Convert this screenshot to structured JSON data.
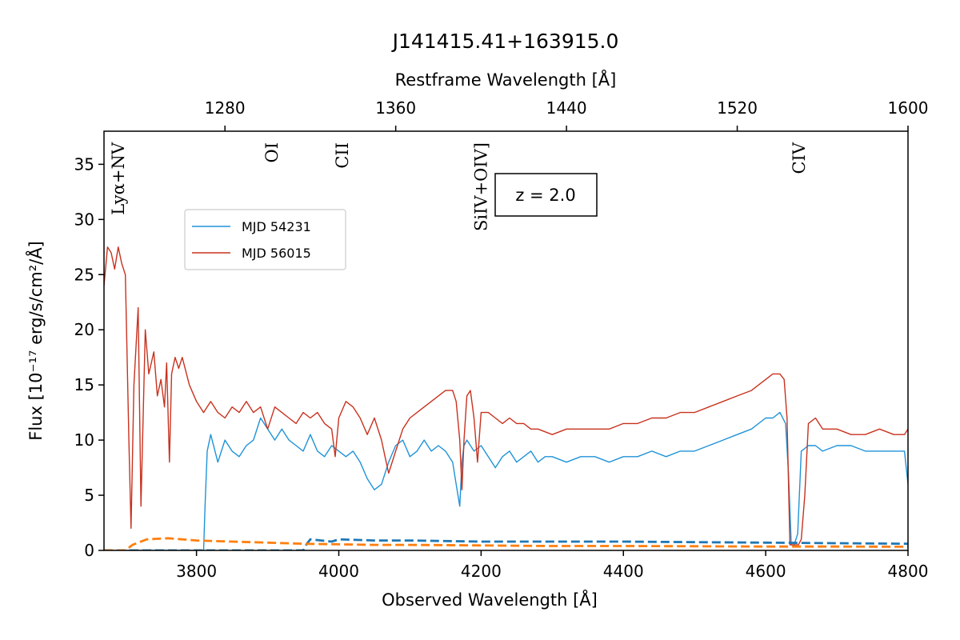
{
  "chart_data": {
    "type": "line",
    "title": "J141415.41+163915.0",
    "xlabel": "Observed Wavelength [Å]",
    "ylabel": "Flux [10⁻¹⁷ erg/s/cm²/Å]",
    "x2label": "Restframe Wavelength [Å]",
    "xlim": [
      3670,
      4800
    ],
    "ylim": [
      0,
      38
    ],
    "redshift": 2.0,
    "redshift_label": "z = 2.0",
    "x_ticks": [
      3800,
      4000,
      4200,
      4400,
      4600,
      4800
    ],
    "x_tick_labels": [
      "3800",
      "4000",
      "4200",
      "4400",
      "4600",
      "4800"
    ],
    "y_ticks": [
      0,
      5,
      10,
      15,
      20,
      25,
      30,
      35
    ],
    "y_tick_labels": [
      "0",
      "5",
      "10",
      "15",
      "20",
      "25",
      "30",
      "35"
    ],
    "x2_ticks": [
      1280,
      1360,
      1440,
      1520,
      1600
    ],
    "x2_tick_labels": [
      "1280",
      "1360",
      "1440",
      "1520",
      "1600"
    ],
    "grid": false,
    "legend_position": "upper-left",
    "line_labels": [
      {
        "text": "Lyα+NV",
        "restframe": 1230
      },
      {
        "text": "OI",
        "restframe": 1302
      },
      {
        "text": "CII",
        "restframe": 1335
      },
      {
        "text": "SiIV+OIV]",
        "restframe": 1400
      },
      {
        "text": "CIV",
        "restframe": 1549
      }
    ],
    "series": [
      {
        "name": "MJD 54231",
        "color": "#1f93d8",
        "style": "solid",
        "x": [
          3670,
          3810,
          3812,
          3815,
          3820,
          3830,
          3840,
          3850,
          3860,
          3870,
          3880,
          3890,
          3900,
          3910,
          3920,
          3930,
          3940,
          3950,
          3960,
          3970,
          3980,
          3990,
          4000,
          4010,
          4020,
          4030,
          4040,
          4050,
          4060,
          4070,
          4080,
          4090,
          4100,
          4110,
          4120,
          4130,
          4140,
          4150,
          4160,
          4165,
          4170,
          4173,
          4176,
          4180,
          4190,
          4200,
          4210,
          4220,
          4230,
          4240,
          4250,
          4260,
          4270,
          4280,
          4290,
          4300,
          4320,
          4340,
          4360,
          4380,
          4400,
          4420,
          4440,
          4460,
          4480,
          4500,
          4520,
          4540,
          4560,
          4580,
          4600,
          4610,
          4620,
          4628,
          4632,
          4636,
          4640,
          4645,
          4650,
          4660,
          4670,
          4680,
          4700,
          4720,
          4740,
          4760,
          4780,
          4795,
          4800
        ],
        "y": [
          0,
          0,
          4,
          9,
          10.5,
          8,
          10,
          9,
          8.5,
          9.5,
          10,
          12,
          11,
          10,
          11,
          10,
          9.5,
          9,
          10.5,
          9,
          8.5,
          9.5,
          9,
          8.5,
          9,
          8,
          6.5,
          5.5,
          6,
          8,
          9.5,
          10,
          8.5,
          9,
          10,
          9,
          9.5,
          9,
          8,
          6,
          4,
          8,
          9.5,
          10,
          9,
          9.5,
          8.5,
          7.5,
          8.5,
          9,
          8,
          8.5,
          9,
          8,
          8.5,
          8.5,
          8,
          8.5,
          8.5,
          8,
          8.5,
          8.5,
          9,
          8.5,
          9,
          9,
          9.5,
          10,
          10.5,
          11,
          12,
          12,
          12.5,
          11.5,
          7,
          0.5,
          0.5,
          1.5,
          9,
          9.5,
          9.5,
          9,
          9.5,
          9.5,
          9,
          9,
          9,
          9,
          6
        ]
      },
      {
        "name": "MJD 56015",
        "color": "#c8321f",
        "style": "solid",
        "x": [
          3670,
          3675,
          3680,
          3685,
          3690,
          3695,
          3700,
          3705,
          3708,
          3712,
          3718,
          3722,
          3728,
          3733,
          3740,
          3745,
          3750,
          3755,
          3758,
          3762,
          3765,
          3770,
          3775,
          3780,
          3790,
          3800,
          3810,
          3820,
          3830,
          3840,
          3850,
          3860,
          3870,
          3880,
          3890,
          3900,
          3910,
          3920,
          3930,
          3940,
          3950,
          3960,
          3970,
          3980,
          3990,
          3995,
          4000,
          4010,
          4020,
          4030,
          4040,
          4050,
          4060,
          4065,
          4070,
          4080,
          4090,
          4100,
          4110,
          4120,
          4130,
          4140,
          4150,
          4160,
          4165,
          4170,
          4173,
          4176,
          4180,
          4185,
          4190,
          4195,
          4200,
          4210,
          4220,
          4230,
          4240,
          4250,
          4260,
          4270,
          4280,
          4300,
          4320,
          4340,
          4360,
          4380,
          4400,
          4420,
          4440,
          4460,
          4480,
          4500,
          4520,
          4540,
          4560,
          4580,
          4600,
          4610,
          4620,
          4626,
          4630,
          4634,
          4638,
          4642,
          4646,
          4650,
          4655,
          4660,
          4670,
          4680,
          4700,
          4720,
          4740,
          4760,
          4780,
          4795,
          4800
        ],
        "y": [
          24,
          27.5,
          27,
          25.5,
          27.5,
          26,
          25,
          10,
          2,
          15,
          22,
          4,
          20,
          16,
          18,
          14,
          15.5,
          13,
          17,
          8,
          16,
          17.5,
          16.5,
          17.5,
          15,
          13.5,
          12.5,
          13.5,
          12.5,
          12,
          13,
          12.5,
          13.5,
          12.5,
          13,
          11,
          13,
          12.5,
          12,
          11.5,
          12.5,
          12,
          12.5,
          11.5,
          11,
          8.5,
          12,
          13.5,
          13,
          12,
          10.5,
          12,
          10,
          8.5,
          7,
          9,
          11,
          12,
          12.5,
          13,
          13.5,
          14,
          14.5,
          14.5,
          13.5,
          10,
          5.5,
          10,
          14,
          14.5,
          12,
          8,
          12.5,
          12.5,
          12,
          11.5,
          12,
          11.5,
          11.5,
          11,
          11,
          10.5,
          11,
          11,
          11,
          11,
          11.5,
          11.5,
          12,
          12,
          12.5,
          12.5,
          13,
          13.5,
          14,
          14.5,
          15.5,
          16,
          16,
          15.5,
          12,
          0.5,
          0.5,
          0.5,
          0.5,
          1,
          5,
          11.5,
          12,
          11,
          11,
          10.5,
          10.5,
          11,
          10.5,
          10.5,
          11
        ]
      },
      {
        "name": "",
        "color": "#1f77b4",
        "style": "dashed",
        "x": [
          3670,
          3950,
          3955,
          3960,
          3990,
          4000,
          4050,
          4100,
          4200,
          4300,
          4400,
          4500,
          4600,
          4700,
          4800
        ],
        "y": [
          0,
          0,
          0.6,
          1.0,
          0.8,
          1.0,
          0.9,
          0.9,
          0.8,
          0.8,
          0.8,
          0.75,
          0.7,
          0.65,
          0.6
        ]
      },
      {
        "name": "",
        "color": "#ff7f0e",
        "style": "dashed",
        "x": [
          3670,
          3700,
          3710,
          3730,
          3760,
          3780,
          3800,
          3850,
          3900,
          3950,
          4000,
          4050,
          4100,
          4200,
          4300,
          4400,
          4500,
          4600,
          4700,
          4800
        ],
        "y": [
          0,
          0,
          0.5,
          1.0,
          1.1,
          1.0,
          0.9,
          0.8,
          0.7,
          0.6,
          0.55,
          0.5,
          0.5,
          0.45,
          0.4,
          0.4,
          0.38,
          0.35,
          0.35,
          0.33
        ]
      }
    ]
  }
}
